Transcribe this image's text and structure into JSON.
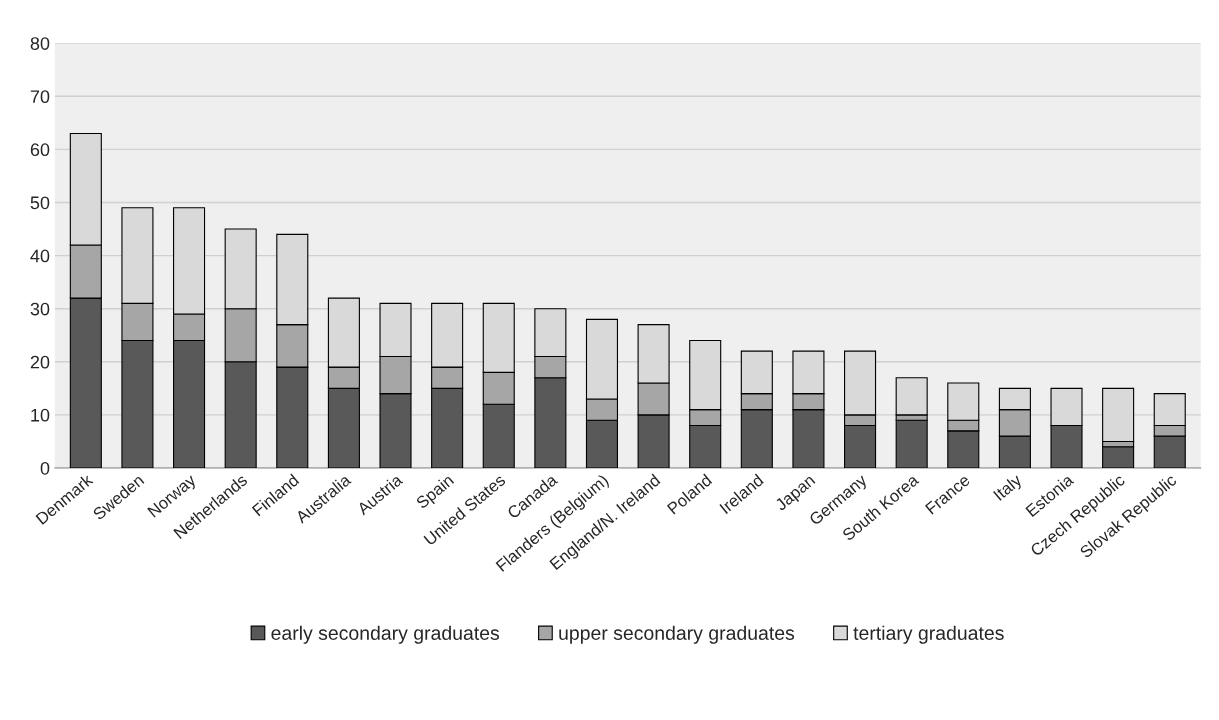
{
  "chart_data": {
    "type": "bar",
    "stacked": true,
    "categories": [
      "Denmark",
      "Sweden",
      "Norway",
      "Netherlands",
      "Finland",
      "Australia",
      "Austria",
      "Spain",
      "United States",
      "Canada",
      "Flanders (Belgium)",
      "England/N. Ireland",
      "Poland",
      "Ireland",
      "Japan",
      "Germany",
      "South Korea",
      "France",
      "Italy",
      "Estonia",
      "Czech Republic",
      "Slovak Republic"
    ],
    "series": [
      {
        "name": "early secondary graduates",
        "color": "#595959",
        "values": [
          32,
          24,
          24,
          20,
          19,
          15,
          14,
          15,
          12,
          17,
          9,
          10,
          8,
          11,
          11,
          8,
          9,
          7,
          6,
          8,
          4,
          6
        ]
      },
      {
        "name": "upper secondary graduates",
        "color": "#a6a6a6",
        "values": [
          10,
          7,
          5,
          10,
          8,
          4,
          7,
          4,
          6,
          4,
          4,
          6,
          3,
          3,
          3,
          2,
          1,
          2,
          5,
          0,
          1,
          2
        ]
      },
      {
        "name": "tertiary graduates",
        "color": "#d9d9d9",
        "values": [
          21,
          18,
          20,
          15,
          17,
          13,
          10,
          12,
          13,
          9,
          15,
          11,
          13,
          8,
          8,
          12,
          7,
          7,
          4,
          7,
          10,
          6
        ]
      }
    ],
    "ylim": [
      0,
      80
    ],
    "yticks": [
      0,
      10,
      20,
      30,
      40,
      50,
      60,
      70,
      80
    ],
    "grid": "y",
    "legend": "bottom"
  }
}
